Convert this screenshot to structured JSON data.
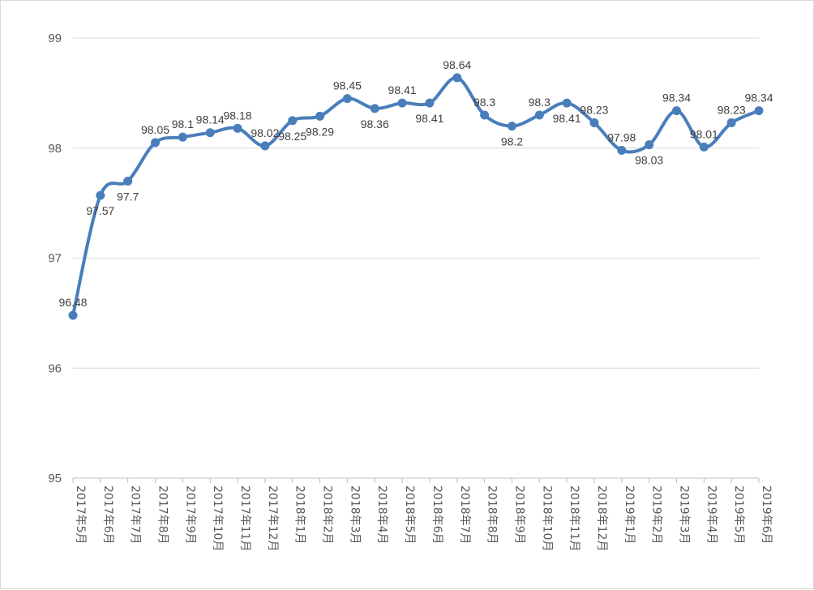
{
  "chart_data": {
    "type": "line",
    "title": "",
    "xlabel": "",
    "ylabel": "",
    "ylim": [
      95,
      99
    ],
    "yticks": [
      95,
      96,
      97,
      98,
      99
    ],
    "grid": true,
    "smooth": true,
    "line_color": "#4a7ebb",
    "categories": [
      "2017年5月",
      "2017年6月",
      "2017年7月",
      "2017年8月",
      "2017年9月",
      "2017年10月",
      "2017年11月",
      "2017年12月",
      "2018年1月",
      "2018年2月",
      "2018年3月",
      "2018年4月",
      "2018年5月",
      "2018年6月",
      "2018年7月",
      "2018年8月",
      "2018年9月",
      "2018年10月",
      "2018年11月",
      "2018年12月",
      "2019年1月",
      "2019年2月",
      "2019年3月",
      "2019年4月",
      "2019年5月",
      "2019年6月"
    ],
    "series": [
      {
        "values": [
          96.48,
          97.57,
          97.7,
          98.05,
          98.1,
          98.14,
          98.18,
          98.02,
          98.25,
          98.29,
          98.45,
          98.36,
          98.41,
          98.41,
          98.64,
          98.3,
          98.2,
          98.3,
          98.41,
          98.23,
          97.98,
          98.03,
          98.34,
          98.01,
          98.23,
          98.34
        ]
      }
    ],
    "data_labels": [
      "96.48",
      "97.57",
      "97.7",
      "98.05",
      "98.1",
      "98.14",
      "98.18",
      "98.02",
      "98.25",
      "98.29",
      "98.45",
      "98.36",
      "98.41",
      "98.41",
      "98.64",
      "98.3",
      "98.2",
      "98.3",
      "98.41",
      "98.23",
      "97.98",
      "98.03",
      "98.34",
      "98.01",
      "98.23",
      "98.34"
    ],
    "label_positions": [
      "above",
      "below",
      "below",
      "above",
      "above",
      "above",
      "above",
      "above",
      "below",
      "below",
      "above",
      "below",
      "above",
      "below",
      "above",
      "above",
      "below",
      "above",
      "below",
      "above",
      "above",
      "below",
      "above",
      "above",
      "above",
      "above"
    ]
  }
}
